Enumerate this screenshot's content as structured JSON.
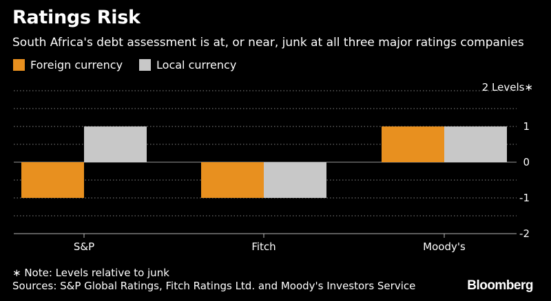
{
  "header": {
    "title": "Ratings Risk",
    "subtitle": "South Africa's debt assessment is at, or near, junk at all three major ratings companies"
  },
  "footer": {
    "note": "∗ Note: Levels relative to junk",
    "sources": "Sources: S&P Global Ratings, Fitch Ratings Ltd. and Moody's Investors Service",
    "brand": "Bloomberg"
  },
  "chart_data": {
    "type": "bar",
    "title": "Ratings Risk",
    "subtitle": "South Africa's debt assessment is at, or near, junk at all three major ratings companies",
    "categories": [
      "S&P",
      "Fitch",
      "Moody's"
    ],
    "series": [
      {
        "name": "Foreign currency",
        "color": "#e8901f",
        "values": [
          -1,
          -1,
          1
        ]
      },
      {
        "name": "Local currency",
        "color": "#c8c8c8",
        "values": [
          1,
          -1,
          1
        ]
      }
    ],
    "ylabel": "2 Levels∗",
    "ylim": [
      -2,
      2
    ],
    "yticks": [
      {
        "value": 1,
        "label": "1"
      },
      {
        "value": 0,
        "label": "0"
      },
      {
        "value": -1,
        "label": "-1"
      },
      {
        "value": -2,
        "label": "-2"
      }
    ],
    "legend_position": "top-left",
    "grid": true
  }
}
